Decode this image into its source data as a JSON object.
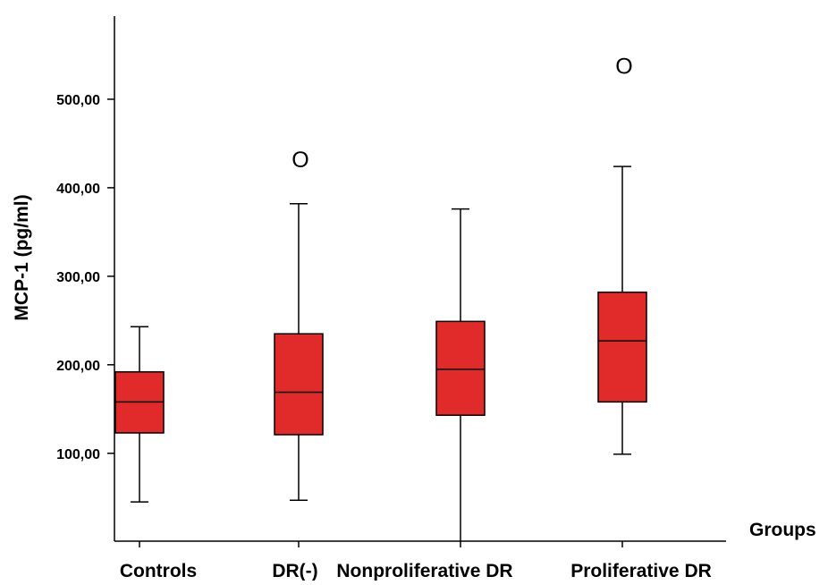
{
  "chart_data": {
    "type": "boxplot",
    "xlabel": "Groups",
    "ylabel": "MCP-1 (pg/ml)",
    "ylim": [
      0,
      600
    ],
    "yticks": [
      100,
      200,
      300,
      400,
      500
    ],
    "ytick_labels": [
      "100,00",
      "200,00",
      "300,00",
      "400,00",
      "500,00"
    ],
    "categories": [
      "Controls",
      "DR(-)",
      "Nonproliferative DR",
      "Proliferative DR"
    ],
    "box_color": "#e12a2a",
    "series": [
      {
        "category": "Controls",
        "min": 45,
        "q1": 123,
        "median": 158,
        "q3": 192,
        "max": 243,
        "outliers": []
      },
      {
        "category": "DR(-)",
        "min": 47,
        "q1": 121,
        "median": 169,
        "q3": 235,
        "max": 382,
        "outliers": [
          432
        ]
      },
      {
        "category": "Nonproliferative DR",
        "min": 0,
        "q1": 143,
        "median": 195,
        "q3": 249,
        "max": 376,
        "outliers": []
      },
      {
        "category": "Proliferative DR",
        "min": 99,
        "q1": 158,
        "median": 227,
        "q3": 282,
        "max": 424,
        "outliers": [
          538
        ]
      }
    ],
    "outlier_symbol": "O",
    "grid": false,
    "legend": "none"
  }
}
